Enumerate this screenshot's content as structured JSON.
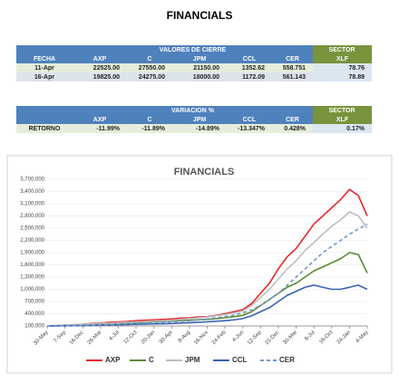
{
  "title": "FINANCIALS",
  "tables": [
    {
      "group": "VALORES DE CIERRE",
      "sector": "SECTOR",
      "columns": [
        "FECHA",
        "AXP",
        "C",
        "JPM",
        "CCL",
        "CER",
        "XLF"
      ],
      "rows": [
        [
          "11-Apr",
          "22525.00",
          "27550.00",
          "21150.00",
          "1352.62",
          "558.751",
          "78.76"
        ],
        [
          "16-Apr",
          "19825.00",
          "24275.00",
          "18000.00",
          "1172.09",
          "561.143",
          "78.89"
        ]
      ]
    },
    {
      "group": "VARIACION %",
      "sector": "SECTOR",
      "columns": [
        "AXP",
        "C",
        "JPM",
        "CCL",
        "CER",
        "XLF"
      ],
      "rows": [
        [
          "RETORNO",
          "-11.99%",
          "-11.89%",
          "-14.89%",
          "-13.347%",
          "0.428%",
          "0.17%"
        ]
      ]
    }
  ],
  "chart_data": {
    "type": "line",
    "title": "FINANCIALS",
    "categories": [
      "30-May",
      null,
      "7-Sep",
      null,
      "16-Dec",
      null,
      "26-Mar",
      null,
      "4-Jul",
      null,
      "12-Oct",
      null,
      "20-Jan",
      null,
      "30-Apr",
      null,
      "8-Aug",
      null,
      "16-Nov",
      null,
      "24-Feb",
      null,
      "4-Jun",
      null,
      "12-Sep",
      null,
      "21-Dec",
      null,
      "30-Mar",
      null,
      "8-Jul",
      null,
      "16-Oct",
      null,
      "24-Jan",
      null,
      "4-May"
    ],
    "series": [
      {
        "name": "AXP",
        "color": "#e8262b",
        "values": [
          100000,
          110000,
          120000,
          130000,
          140000,
          160000,
          170000,
          190000,
          200000,
          210000,
          230000,
          240000,
          250000,
          260000,
          270000,
          290000,
          300000,
          320000,
          330000,
          360000,
          400000,
          450000,
          500000,
          650000,
          900000,
          1150000,
          1500000,
          1800000,
          2000000,
          2300000,
          2600000,
          2800000,
          3000000,
          3200000,
          3450000,
          3300000,
          2800000
        ]
      },
      {
        "name": "C",
        "color": "#5d8a34",
        "values": [
          100000,
          105000,
          110000,
          115000,
          120000,
          130000,
          140000,
          150000,
          160000,
          170000,
          180000,
          190000,
          200000,
          210000,
          220000,
          230000,
          240000,
          250000,
          260000,
          280000,
          300000,
          330000,
          360000,
          450000,
          600000,
          750000,
          900000,
          1050000,
          1150000,
          1300000,
          1450000,
          1550000,
          1650000,
          1750000,
          1900000,
          1850000,
          1400000
        ]
      },
      {
        "name": "JPM",
        "color": "#bdbdbd",
        "values": [
          100000,
          110000,
          120000,
          130000,
          140000,
          150000,
          160000,
          170000,
          180000,
          190000,
          200000,
          210000,
          220000,
          230000,
          240000,
          260000,
          280000,
          300000,
          320000,
          350000,
          380000,
          420000,
          470000,
          600000,
          800000,
          1000000,
          1250000,
          1500000,
          1700000,
          1950000,
          2150000,
          2350000,
          2550000,
          2700000,
          2900000,
          2800000,
          2500000
        ]
      },
      {
        "name": "CCL",
        "color": "#3a62b0",
        "values": [
          100000,
          102000,
          105000,
          108000,
          110000,
          115000,
          120000,
          125000,
          130000,
          135000,
          140000,
          145000,
          150000,
          155000,
          160000,
          170000,
          180000,
          190000,
          200000,
          215000,
          230000,
          250000,
          280000,
          350000,
          450000,
          550000,
          700000,
          850000,
          950000,
          1050000,
          1100000,
          1050000,
          1000000,
          1000000,
          1050000,
          1100000,
          1000000
        ]
      },
      {
        "name": "CER",
        "color": "#6f97cf",
        "dashed": true,
        "values": [
          100000,
          103000,
          106000,
          110000,
          115000,
          120000,
          125000,
          130000,
          140000,
          150000,
          160000,
          170000,
          180000,
          190000,
          200000,
          215000,
          230000,
          250000,
          270000,
          300000,
          330000,
          370000,
          420000,
          500000,
          600000,
          750000,
          900000,
          1100000,
          1300000,
          1500000,
          1700000,
          1900000,
          2050000,
          2200000,
          2350000,
          2480000,
          2600000
        ]
      }
    ],
    "ylim": [
      100000,
      3700000
    ],
    "yticks": [
      {
        "value": 100000,
        "label": "100,000"
      },
      {
        "value": 400000,
        "label": "400,000"
      },
      {
        "value": 700000,
        "label": "700,000"
      },
      {
        "value": 1000000,
        "label": "1,000,000"
      },
      {
        "value": 1300000,
        "label": "1,300,000"
      },
      {
        "value": 1600000,
        "label": "1,600,000"
      },
      {
        "value": 1900000,
        "label": "1,900,000"
      },
      {
        "value": 2200000,
        "label": "2,200,000"
      },
      {
        "value": 2500000,
        "label": "2,500,000"
      },
      {
        "value": 2800000,
        "label": "2,800,000"
      },
      {
        "value": 3100000,
        "label": "3,100,000"
      },
      {
        "value": 3400000,
        "label": "3,400,000"
      },
      {
        "value": 3700000,
        "label": "3,700,000"
      }
    ],
    "legend": "bottom"
  }
}
